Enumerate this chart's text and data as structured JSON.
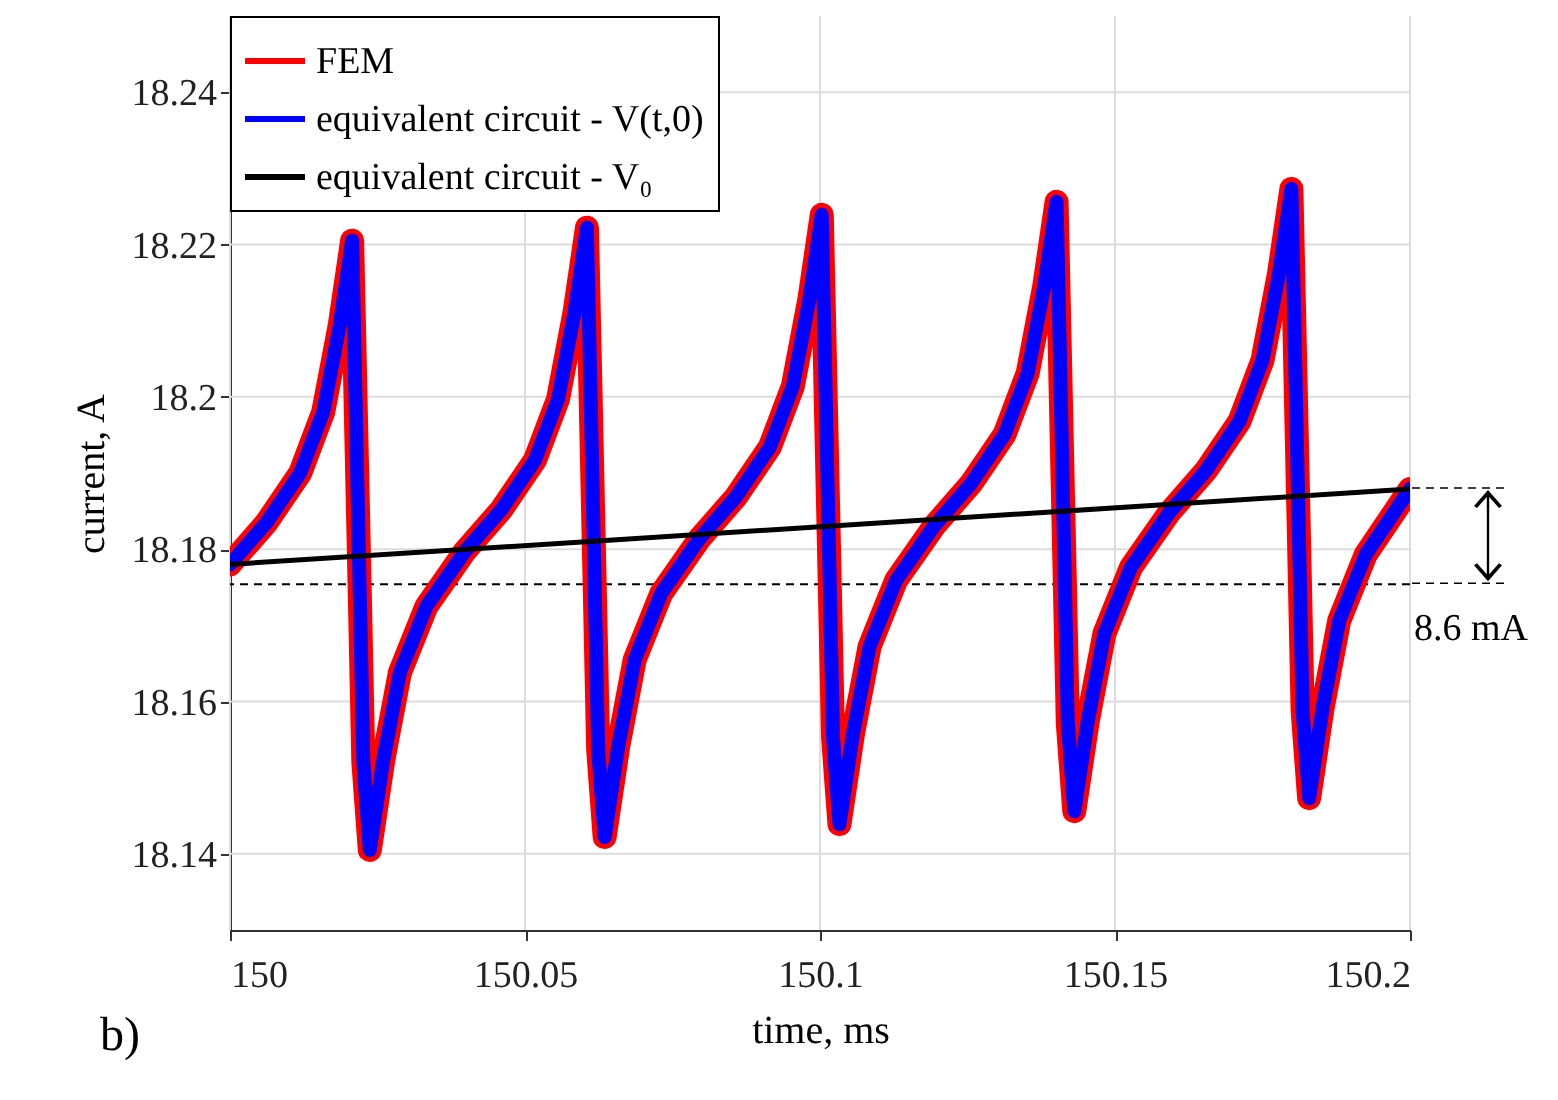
{
  "chart_data": {
    "type": "line",
    "xlabel": "time, ms",
    "ylabel": "current, A",
    "xlim": [
      150,
      150.2
    ],
    "xticks": [
      150,
      150.05,
      150.1,
      150.15,
      150.2
    ],
    "ylim": [
      18.13,
      18.25
    ],
    "yticks": [
      18.14,
      18.16,
      18.18,
      18.2,
      18.22,
      18.24
    ],
    "grid": true,
    "legend": "top left",
    "series": [
      {
        "name": "FEM",
        "color": "#ff0000",
        "x": [
          150,
          150.0062,
          150.0119,
          150.0158,
          150.0186,
          150.0207,
          150.022,
          150.0226,
          150.0237,
          150.026,
          150.0288,
          150.0333,
          150.0398,
          150.046,
          150.0517,
          150.0556,
          150.0584,
          150.0605,
          150.0618,
          150.0624,
          150.0635,
          150.0658,
          150.0686,
          150.0731,
          150.0796,
          150.0858,
          150.0915,
          150.0954,
          150.0982,
          150.1003,
          150.1016,
          150.1022,
          150.1033,
          150.1056,
          150.1084,
          150.1129,
          150.1194,
          150.1256,
          150.1313,
          150.1352,
          150.138,
          150.1401,
          150.1414,
          150.142,
          150.1431,
          150.1454,
          150.1482,
          150.1527,
          150.1592,
          150.1654,
          150.1711,
          150.175,
          150.1778,
          150.1799,
          150.1812,
          150.1818,
          150.1829,
          150.1852,
          150.188,
          150.1925,
          150.2
        ],
        "values": [
          18.178,
          18.1835,
          18.19,
          18.198,
          18.2094,
          18.2205,
          18.174,
          18.152,
          18.1405,
          18.1524,
          18.1638,
          18.1725,
          18.1797,
          18.1852,
          18.1917,
          18.1997,
          18.2111,
          18.2222,
          18.1757,
          18.1537,
          18.1422,
          18.1541,
          18.1655,
          18.1742,
          18.1814,
          18.1869,
          18.1934,
          18.2014,
          18.2128,
          18.2239,
          18.1774,
          18.1554,
          18.1439,
          18.1558,
          18.1672,
          18.1759,
          18.1831,
          18.1886,
          18.1951,
          18.2031,
          18.2145,
          18.2256,
          18.1791,
          18.1571,
          18.1456,
          18.1575,
          18.1689,
          18.1776,
          18.1848,
          18.1903,
          18.1968,
          18.2048,
          18.2162,
          18.2273,
          18.1808,
          18.1588,
          18.1473,
          18.1592,
          18.1706,
          18.1793,
          18.1879
        ]
      },
      {
        "name": "equivalent circuit - V(t,0)",
        "color": "#0000ff",
        "x": [
          150,
          150.0062,
          150.0119,
          150.0158,
          150.0186,
          150.0207,
          150.022,
          150.0226,
          150.0237,
          150.026,
          150.0288,
          150.0333,
          150.0398,
          150.046,
          150.0517,
          150.0556,
          150.0584,
          150.0605,
          150.0618,
          150.0624,
          150.0635,
          150.0658,
          150.0686,
          150.0731,
          150.0796,
          150.0858,
          150.0915,
          150.0954,
          150.0982,
          150.1003,
          150.1016,
          150.1022,
          150.1033,
          150.1056,
          150.1084,
          150.1129,
          150.1194,
          150.1256,
          150.1313,
          150.1352,
          150.138,
          150.1401,
          150.1414,
          150.142,
          150.1431,
          150.1454,
          150.1482,
          150.1527,
          150.1592,
          150.1654,
          150.1711,
          150.175,
          150.1778,
          150.1799,
          150.1812,
          150.1818,
          150.1829,
          150.1852,
          150.188,
          150.1925,
          150.2
        ],
        "values": [
          18.178,
          18.1835,
          18.19,
          18.198,
          18.2094,
          18.2205,
          18.174,
          18.152,
          18.1405,
          18.1524,
          18.1638,
          18.1725,
          18.1797,
          18.1852,
          18.1917,
          18.1997,
          18.2111,
          18.2222,
          18.1757,
          18.1537,
          18.1422,
          18.1541,
          18.1655,
          18.1742,
          18.1814,
          18.1869,
          18.1934,
          18.2014,
          18.2128,
          18.2239,
          18.1774,
          18.1554,
          18.1439,
          18.1558,
          18.1672,
          18.1759,
          18.1831,
          18.1886,
          18.1951,
          18.2031,
          18.2145,
          18.2256,
          18.1791,
          18.1571,
          18.1456,
          18.1575,
          18.1689,
          18.1776,
          18.1848,
          18.1903,
          18.1968,
          18.2048,
          18.2162,
          18.2273,
          18.1808,
          18.1588,
          18.1473,
          18.1592,
          18.1706,
          18.1793,
          18.1879
        ]
      },
      {
        "name": "equivalent circuit - V₀",
        "color": "#000000",
        "x": [
          150,
          150.2
        ],
        "values": [
          18.178,
          18.1879
        ]
      }
    ],
    "ref_lines": [
      {
        "axis": "y",
        "value": 18.1754,
        "line_style": "dashed",
        "color": "#000000"
      }
    ],
    "annotations": [
      {
        "text": "8.6 mA",
        "x": 150.2,
        "y": 18.1754
      },
      "b)"
    ]
  }
}
